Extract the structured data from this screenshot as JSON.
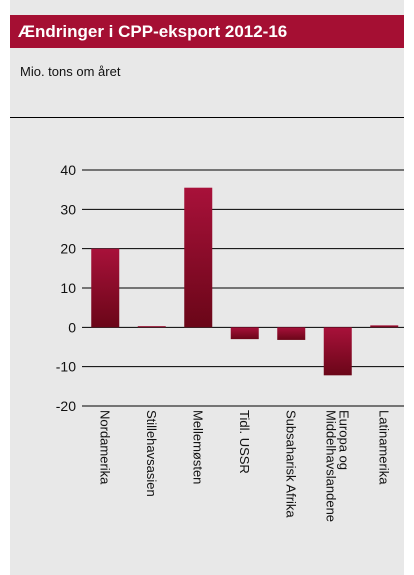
{
  "header": {
    "title": "Ændringer i CPP-eksport 2012-16",
    "subtitle": "Mio. tons om året"
  },
  "colors": {
    "title_bar": "#a50f33",
    "panel": "#e8e8e8",
    "bar_top": "#a8113a",
    "bar_bottom": "#6a0618"
  },
  "chart_data": {
    "type": "bar",
    "title": "Ændringer i CPP-eksport 2012-16",
    "ylabel": "Mio. tons om året",
    "xlabel": "",
    "categories": [
      "Nordamerika",
      "Stillehavsasien",
      "Mellemøsten",
      "Tidl. USSR",
      "Subsaharisk Afrika",
      "Europa og Middelhavslandene",
      "Latinamerika"
    ],
    "category_lines": [
      [
        "Nordamerika"
      ],
      [
        "Stillehavsasien"
      ],
      [
        "Mellemøsten"
      ],
      [
        "Tidl. USSR"
      ],
      [
        "Subsaharisk Afrika"
      ],
      [
        "Europa og",
        "Middelhavslandene"
      ],
      [
        "Latinamerika"
      ]
    ],
    "values": [
      20,
      0.3,
      35.5,
      -3,
      -3.2,
      -12.2,
      0.5
    ],
    "ylim": [
      -20,
      40
    ],
    "yticks": [
      -20,
      -10,
      0,
      10,
      20,
      30,
      40
    ],
    "ytick_labels": [
      "-20",
      "-10",
      "0",
      "10",
      "20",
      "30",
      "40"
    ],
    "grid": true,
    "legend": "none"
  }
}
